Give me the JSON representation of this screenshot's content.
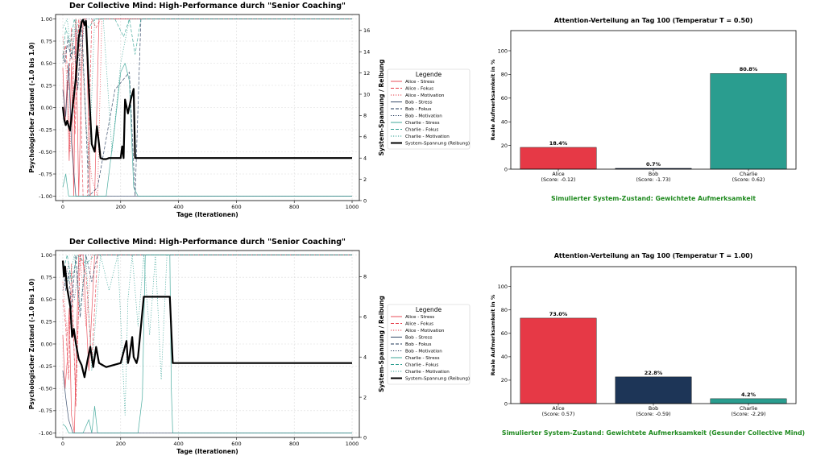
{
  "chart_data": [
    {
      "type": "line",
      "title": "Der Collective Mind: High-Performance durch \"Senior Coaching\"",
      "xlabel": "Tage (Iterationen)",
      "ylabel": "Psychologischer Zustand (-1.0 bis 1.0)",
      "ylabel2": "System-Spannung / Reibung",
      "xlim": [
        -25,
        1025
      ],
      "ylim": [
        -1.05,
        1.05
      ],
      "y2lim": [
        0,
        17.5
      ],
      "xticks": [
        0,
        200,
        400,
        600,
        800,
        1000
      ],
      "yticks": [
        -1.0,
        -0.75,
        -0.5,
        -0.25,
        0.0,
        0.25,
        0.5,
        0.75,
        1.0
      ],
      "ytick_labels": [
        "-1.00",
        "-0.75",
        "-0.50",
        "-0.25",
        "0.00",
        "0.25",
        "0.50",
        "0.75",
        "1.00"
      ],
      "y2ticks": [
        0,
        2,
        4,
        6,
        8,
        10,
        12,
        14,
        16
      ],
      "legend_title": "Legende",
      "legend_position": "outside-right",
      "series": [
        {
          "name": "Alice - Stress",
          "color": "#e63946",
          "dash": "solid",
          "axis": "left",
          "x": [
            0,
            8,
            15,
            22,
            30,
            38,
            45,
            55,
            70,
            80,
            95,
            110,
            125,
            140,
            150,
            175,
            1000
          ],
          "y": [
            0.45,
            -0.2,
            0.3,
            -0.6,
            0.5,
            -1.0,
            1.0,
            -1.0,
            1.0,
            1.0,
            -1.0,
            -1.0,
            1.0,
            1.0,
            1.0,
            1.0,
            1.0
          ]
        },
        {
          "name": "Alice - Fokus",
          "color": "#e63946",
          "dash": "dashed",
          "axis": "left",
          "x": [
            0,
            10,
            20,
            30,
            42,
            55,
            70,
            85,
            100,
            115,
            130,
            160,
            1000
          ],
          "y": [
            0.6,
            0.7,
            0.2,
            0.9,
            -0.3,
            1.0,
            -1.0,
            -1.0,
            1.0,
            0.9,
            1.0,
            1.0,
            1.0
          ]
        },
        {
          "name": "Alice - Motivation",
          "color": "#e63946",
          "dash": "dotted",
          "axis": "left",
          "x": [
            0,
            12,
            25,
            40,
            60,
            80,
            100,
            120,
            135,
            150,
            1000
          ],
          "y": [
            0.8,
            0.4,
            -0.5,
            0.6,
            1.0,
            -0.2,
            -0.8,
            -1.0,
            1.0,
            1.0,
            1.0
          ]
        },
        {
          "name": "Bob - Stress",
          "color": "#1d3557",
          "dash": "solid",
          "axis": "left",
          "x": [
            0,
            10,
            20,
            30,
            45,
            60,
            80,
            100,
            1000
          ],
          "y": [
            0.2,
            -0.1,
            0.5,
            -0.4,
            -1.0,
            -1.0,
            -1.0,
            -1.0,
            -1.0
          ]
        },
        {
          "name": "Bob - Fokus",
          "color": "#1d3557",
          "dash": "dashed",
          "axis": "left",
          "x": [
            0,
            8,
            18,
            28,
            40,
            52,
            65,
            90,
            120,
            180,
            230,
            250,
            270,
            1000
          ],
          "y": [
            0.6,
            0.5,
            0.8,
            0.55,
            0.7,
            0.2,
            1.0,
            -1.0,
            -0.9,
            0.2,
            0.4,
            -1.0,
            1.0,
            1.0
          ]
        },
        {
          "name": "Bob - Motivation",
          "color": "#1d3557",
          "dash": "dotted",
          "axis": "left",
          "x": [
            0,
            15,
            30,
            45,
            60,
            75,
            95,
            1000
          ],
          "y": [
            0.5,
            0.7,
            0.6,
            0.9,
            0.4,
            1.0,
            1.0,
            1.0
          ]
        },
        {
          "name": "Charlie - Stress",
          "color": "#2a9d8f",
          "dash": "solid",
          "axis": "left",
          "x": [
            0,
            10,
            20,
            35,
            60,
            90,
            120,
            150,
            180,
            200,
            215,
            230,
            245,
            260,
            1000
          ],
          "y": [
            -0.9,
            -0.75,
            -1.0,
            -1.0,
            -1.0,
            -1.0,
            -1.0,
            -1.0,
            -0.2,
            0.4,
            0.5,
            0.3,
            -0.9,
            -1.0,
            -1.0
          ]
        },
        {
          "name": "Charlie - Fokus",
          "color": "#2a9d8f",
          "dash": "dashed",
          "axis": "left",
          "x": [
            0,
            10,
            25,
            40,
            55,
            70,
            90,
            110,
            140,
            180,
            210,
            230,
            250,
            270,
            1000
          ],
          "y": [
            0.55,
            0.9,
            0.7,
            1.0,
            0.8,
            1.0,
            0.9,
            1.0,
            1.0,
            1.0,
            0.8,
            1.0,
            0.6,
            1.0,
            1.0
          ]
        },
        {
          "name": "Charlie - Motivation",
          "color": "#2a9d8f",
          "dash": "dotted",
          "axis": "left",
          "x": [
            0,
            15,
            30,
            45,
            65,
            90,
            110,
            140,
            170,
            200,
            230,
            260,
            1000
          ],
          "y": [
            0.9,
            1.0,
            0.6,
            1.0,
            0.8,
            -0.7,
            1.0,
            1.0,
            -0.5,
            0.5,
            1.0,
            1.0,
            1.0
          ]
        },
        {
          "name": "System-Spannung (Reibung)",
          "color": "#000000",
          "dash": "solid",
          "width": 2.2,
          "axis": "right",
          "x": [
            0,
            5,
            10,
            15,
            20,
            25,
            35,
            45,
            55,
            65,
            70,
            75,
            80,
            90,
            100,
            110,
            118,
            125,
            130,
            140,
            150,
            160,
            180,
            200,
            205,
            210,
            215,
            225,
            235,
            245,
            250,
            255,
            260,
            1000
          ],
          "y": [
            8.8,
            7.6,
            7.1,
            7.5,
            7.0,
            6.6,
            9.0,
            11.5,
            15.3,
            16.8,
            17.0,
            16.5,
            16.9,
            10.5,
            5.3,
            4.6,
            7.0,
            5.3,
            4.0,
            3.9,
            3.9,
            4.0,
            4.0,
            4.0,
            5.1,
            4.0,
            9.5,
            8.2,
            9.5,
            10.5,
            4.0,
            4.0,
            4.0,
            4.0
          ]
        }
      ]
    },
    {
      "type": "bar",
      "title": "Attention-Verteilung an Tag 100 (Temperatur T = 0.50)",
      "ylabel": "Reale Aufmerksamkeit in %",
      "xlabel": "",
      "ylim": [
        0,
        117
      ],
      "yticks": [
        0,
        20,
        40,
        60,
        80,
        100
      ],
      "categories": [
        "Alice",
        "Bob",
        "Charlie"
      ],
      "category_scores": [
        "(Score: -0.12)",
        "(Score: -1.73)",
        "(Score: 0.62)"
      ],
      "values": [
        18.4,
        0.7,
        80.8
      ],
      "value_labels": [
        "18.4%",
        "0.7%",
        "80.8%"
      ],
      "colors": [
        "#e63946",
        "#1d3557",
        "#2a9d8f"
      ],
      "caption": "Simulierter System-Zustand: Gewichtete Aufmerksamkeit",
      "caption_color": "#1f8a1f"
    },
    {
      "type": "line",
      "title": "Der Collective Mind: High-Performance durch \"Senior Coaching\"",
      "xlabel": "Tage (Iterationen)",
      "ylabel": "Psychologischer Zustand (-1.0 bis 1.0)",
      "ylabel2": "System-Spannung / Reibung",
      "xlim": [
        -25,
        1025
      ],
      "ylim": [
        -1.05,
        1.05
      ],
      "y2lim": [
        0,
        9.3
      ],
      "xticks": [
        0,
        200,
        400,
        600,
        800,
        1000
      ],
      "yticks": [
        -1.0,
        -0.75,
        -0.5,
        -0.25,
        0.0,
        0.25,
        0.5,
        0.75,
        1.0
      ],
      "ytick_labels": [
        "-1.00",
        "-0.75",
        "-0.50",
        "-0.25",
        "0.00",
        "0.25",
        "0.50",
        "0.75",
        "1.00"
      ],
      "y2ticks": [
        0,
        2,
        4,
        6,
        8
      ],
      "legend_title": "Legende",
      "legend_position": "outside-right",
      "series": [
        {
          "name": "Alice - Stress",
          "color": "#e63946",
          "dash": "solid",
          "axis": "left",
          "x": [
            0,
            8,
            15,
            22,
            30,
            40,
            55,
            70,
            90,
            110,
            130,
            1000
          ],
          "y": [
            0.1,
            -0.5,
            -0.2,
            0.4,
            -0.8,
            -1.0,
            1.0,
            1.0,
            -0.3,
            1.0,
            1.0,
            1.0
          ]
        },
        {
          "name": "Alice - Fokus",
          "color": "#e63946",
          "dash": "dashed",
          "axis": "left",
          "x": [
            0,
            10,
            20,
            30,
            45,
            60,
            80,
            100,
            120,
            1000
          ],
          "y": [
            0.5,
            0.2,
            -0.4,
            0.9,
            -0.7,
            1.0,
            0.8,
            -0.2,
            1.0,
            1.0
          ]
        },
        {
          "name": "Alice - Motivation",
          "color": "#e63946",
          "dash": "dotted",
          "axis": "left",
          "x": [
            0,
            15,
            30,
            45,
            60,
            80,
            100,
            1000
          ],
          "y": [
            0.7,
            0.1,
            0.6,
            -0.6,
            1.0,
            0.2,
            1.0,
            1.0
          ]
        },
        {
          "name": "Bob - Stress",
          "color": "#1d3557",
          "dash": "solid",
          "axis": "left",
          "x": [
            0,
            10,
            20,
            35,
            60,
            80,
            1000
          ],
          "y": [
            -0.3,
            -0.6,
            -0.85,
            -1.0,
            -1.0,
            -1.0,
            -1.0
          ]
        },
        {
          "name": "Bob - Fokus",
          "color": "#1d3557",
          "dash": "dashed",
          "axis": "left",
          "x": [
            0,
            10,
            20,
            30,
            45,
            60,
            80,
            100,
            120,
            1000
          ],
          "y": [
            0.9,
            0.6,
            0.8,
            0.4,
            1.0,
            0.3,
            1.0,
            0.7,
            1.0,
            1.0
          ]
        },
        {
          "name": "Bob - Motivation",
          "color": "#1d3557",
          "dash": "dotted",
          "axis": "left",
          "x": [
            0,
            20,
            40,
            60,
            80,
            1000
          ],
          "y": [
            0.6,
            0.9,
            0.5,
            1.0,
            1.0,
            1.0
          ]
        },
        {
          "name": "Charlie - Stress",
          "color": "#2a9d8f",
          "dash": "solid",
          "axis": "left",
          "x": [
            0,
            10,
            20,
            40,
            70,
            90,
            100,
            110,
            120,
            150,
            200,
            260,
            275,
            285,
            290,
            370,
            375,
            380,
            1000
          ],
          "y": [
            -0.9,
            -0.93,
            -1.0,
            -1.0,
            -1.0,
            -0.85,
            -1.0,
            -0.7,
            -1.0,
            -1.0,
            -1.0,
            -1.0,
            -0.6,
            1.0,
            1.0,
            1.0,
            -0.5,
            -1.0,
            -1.0
          ]
        },
        {
          "name": "Charlie - Fokus",
          "color": "#2a9d8f",
          "dash": "dashed",
          "axis": "left",
          "x": [
            0,
            15,
            30,
            50,
            80,
            110,
            150,
            200,
            250,
            280,
            300,
            1000
          ],
          "y": [
            0.8,
            1.0,
            0.7,
            1.0,
            0.9,
            1.0,
            1.0,
            1.0,
            1.0,
            1.0,
            1.0,
            1.0
          ]
        },
        {
          "name": "Charlie - Motivation",
          "color": "#2a9d8f",
          "dash": "dotted",
          "axis": "left",
          "x": [
            0,
            20,
            40,
            60,
            80,
            100,
            130,
            160,
            190,
            215,
            225,
            240,
            260,
            280,
            300,
            320,
            340,
            360,
            380,
            1000
          ],
          "y": [
            0.9,
            0.7,
            1.0,
            0.4,
            1.0,
            -0.3,
            1.0,
            0.6,
            1.0,
            -0.8,
            0.5,
            1.0,
            0.2,
            1.0,
            0.1,
            1.0,
            -0.4,
            1.0,
            1.0,
            1.0
          ]
        },
        {
          "name": "System-Spannung (Reibung)",
          "color": "#000000",
          "dash": "solid",
          "width": 2.2,
          "axis": "right",
          "x": [
            0,
            4,
            8,
            14,
            20,
            26,
            32,
            38,
            45,
            55,
            65,
            75,
            85,
            95,
            105,
            115,
            125,
            150,
            200,
            220,
            225,
            230,
            240,
            245,
            255,
            260,
            280,
            290,
            300,
            340,
            370,
            380,
            1000
          ],
          "y": [
            8.8,
            8.0,
            8.5,
            7.5,
            7.0,
            6.5,
            5.0,
            5.4,
            4.7,
            3.9,
            3.6,
            3.0,
            3.8,
            4.5,
            3.5,
            4.5,
            3.7,
            3.5,
            3.7,
            4.8,
            3.7,
            4.0,
            5.0,
            4.0,
            3.7,
            4.0,
            7.0,
            7.0,
            7.0,
            7.0,
            7.0,
            3.7,
            3.7
          ]
        }
      ]
    },
    {
      "type": "bar",
      "title": "Attention-Verteilung an Tag 100 (Temperatur T = 1.00)",
      "ylabel": "Reale Aufmerksamkeit in %",
      "xlabel": "",
      "ylim": [
        0,
        117
      ],
      "yticks": [
        0,
        20,
        40,
        60,
        80,
        100
      ],
      "categories": [
        "Alice",
        "Bob",
        "Charlie"
      ],
      "category_scores": [
        "(Score: 0.57)",
        "(Score: -0.59)",
        "(Score: -2.29)"
      ],
      "values": [
        73.0,
        22.8,
        4.2
      ],
      "value_labels": [
        "73.0%",
        "22.8%",
        "4.2%"
      ],
      "colors": [
        "#e63946",
        "#1d3557",
        "#2a9d8f"
      ],
      "caption": "Simulierter System-Zustand: Gewichtete Aufmerksamkeit (Gesunder Collective Mind)",
      "caption_color": "#1f8a1f"
    }
  ]
}
